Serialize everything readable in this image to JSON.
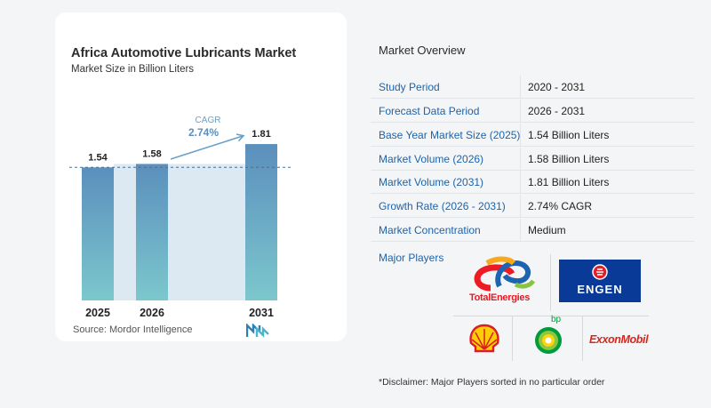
{
  "chart_data": {
    "type": "bar",
    "title": "Africa Automotive Lubricants Market",
    "subtitle": "Market Size in Billion Liters",
    "categories": [
      "2025",
      "2026",
      "2031"
    ],
    "values": [
      1.54,
      1.58,
      1.81
    ],
    "value_labels": [
      "1.54",
      "1.58",
      "1.81"
    ],
    "annotation": {
      "label": "CAGR",
      "value": "2.74%"
    },
    "colors": {
      "bar_top": "#5b8fbd",
      "bar_bottom": "#7cc7cd",
      "band": "#dce8f2",
      "arrow": "#6aa0c8"
    }
  },
  "source": "Source:  Mordor Intelligence",
  "overview": {
    "title": "Market Overview",
    "rows": [
      {
        "key": "Study Period",
        "value": "2020 - 2031"
      },
      {
        "key": "Forecast Data Period",
        "value": "2026 - 2031"
      },
      {
        "key": "Base Year Market Size (2025)",
        "value": "1.54 Billion Liters"
      },
      {
        "key": "Market Volume (2026)",
        "value": "1.58 Billion Liters"
      },
      {
        "key": "Market Volume (2031)",
        "value": "1.81 Billion Liters"
      },
      {
        "key": "Growth Rate (2026 - 2031)",
        "value": "2.74% CAGR"
      },
      {
        "key": "Market Concentration",
        "value": "Medium"
      }
    ],
    "major_players_label": "Major Players",
    "players": [
      "TotalEnergies",
      "ENGEN",
      "Shell",
      "bp",
      "ExxonMobil"
    ],
    "disclaimer": "*Disclaimer: Major Players sorted in no particular order"
  },
  "colors": {
    "accent": "#1e63a8",
    "engen_blue": "#0a3a97",
    "engen_red": "#e3202a",
    "exxon_red": "#d9261c",
    "shell_red": "#dd1d21",
    "shell_yellow": "#fbce07",
    "bp_green": "#009b3a"
  }
}
